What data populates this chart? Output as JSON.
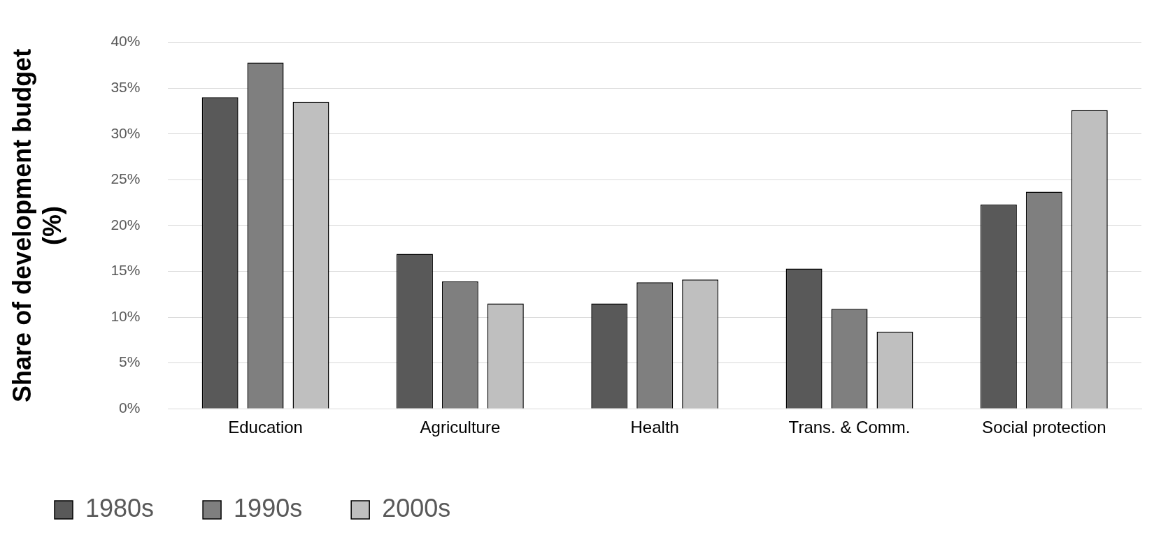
{
  "chart_data": {
    "type": "bar",
    "ylabel": "Share of development budget (%)",
    "categories": [
      "Education",
      "Agriculture",
      "Health",
      "Trans. & Comm.",
      "Social protection"
    ],
    "series": [
      {
        "name": "1980s",
        "color": "#595959",
        "values": [
          34.0,
          16.9,
          11.5,
          15.3,
          22.3
        ]
      },
      {
        "name": "1990s",
        "color": "#7f7f7f",
        "values": [
          37.8,
          13.9,
          13.8,
          10.9,
          23.7
        ]
      },
      {
        "name": "2000s",
        "color": "#bfbfbf",
        "values": [
          33.5,
          11.5,
          14.1,
          8.4,
          32.6
        ]
      }
    ],
    "ylim": [
      0,
      40
    ],
    "yticks": [
      {
        "value": 0,
        "label": "0%"
      },
      {
        "value": 5,
        "label": "5%"
      },
      {
        "value": 10,
        "label": "10%"
      },
      {
        "value": 15,
        "label": "15%"
      },
      {
        "value": 20,
        "label": "20%"
      },
      {
        "value": 25,
        "label": "25%"
      },
      {
        "value": 30,
        "label": "30%"
      },
      {
        "value": 35,
        "label": "35%"
      },
      {
        "value": 40,
        "label": "40%"
      }
    ],
    "grid": "y",
    "legend": "bottom left"
  }
}
